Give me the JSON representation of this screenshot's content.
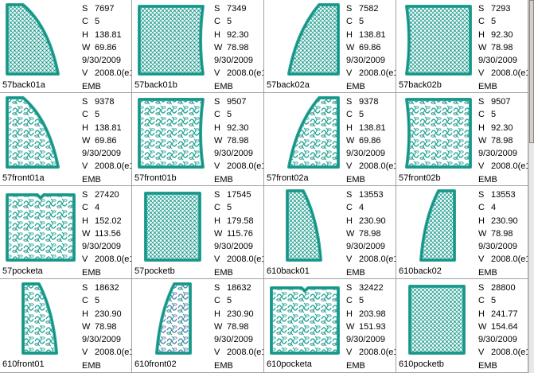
{
  "colors": {
    "stitch": "#2aa89a",
    "stitch_dark": "#0f7f74",
    "thread_accent": "#6a7fb0",
    "border": "#a0a0a0"
  },
  "designs": [
    {
      "name": "57back01a",
      "s": "7697",
      "c": "5",
      "h": "138.81",
      "w": "69.86",
      "date": "9/30/2009",
      "v": "2008.0(e1",
      "fmt": "EMB",
      "shape": "back-a",
      "fill": "grid"
    },
    {
      "name": "57back01b",
      "s": "7349",
      "c": "5",
      "h": "92.30",
      "w": "78.98",
      "date": "9/30/2009",
      "v": "2008.0(e1",
      "fmt": "EMB",
      "shape": "back-b",
      "fill": "grid"
    },
    {
      "name": "57back02a",
      "s": "7582",
      "c": "5",
      "h": "138.81",
      "w": "69.86",
      "date": "9/30/2009",
      "v": "2008.0(e1",
      "fmt": "EMB",
      "shape": "back-a-mirror",
      "fill": "grid"
    },
    {
      "name": "57back02b",
      "s": "7293",
      "c": "5",
      "h": "92.30",
      "w": "78.98",
      "date": "9/30/2009",
      "v": "2008.0(e1",
      "fmt": "EMB",
      "shape": "back-b-mirror",
      "fill": "grid"
    },
    {
      "name": "57front01a",
      "s": "9378",
      "c": "5",
      "h": "138.81",
      "w": "69.86",
      "date": "9/30/2009",
      "v": "2008.0(e1",
      "fmt": "EMB",
      "shape": "back-a",
      "fill": "floral"
    },
    {
      "name": "57front01b",
      "s": "9507",
      "c": "5",
      "h": "92.30",
      "w": "78.98",
      "date": "9/30/2009",
      "v": "2008.0(e1",
      "fmt": "EMB",
      "shape": "back-b",
      "fill": "floral"
    },
    {
      "name": "57front02a",
      "s": "9378",
      "c": "5",
      "h": "138.81",
      "w": "69.86",
      "date": "9/30/2009",
      "v": "2008.0(e1",
      "fmt": "EMB",
      "shape": "back-a-mirror",
      "fill": "floral"
    },
    {
      "name": "57front02b",
      "s": "9507",
      "c": "5",
      "h": "92.30",
      "w": "78.98",
      "date": "9/30/2009",
      "v": "2008.0(e1",
      "fmt": "EMB",
      "shape": "back-b-mirror",
      "fill": "floral"
    },
    {
      "name": "57pocketa",
      "s": "27420",
      "c": "4",
      "h": "152.02",
      "w": "113.56",
      "date": "9/30/2009",
      "v": "2008.0(e1",
      "fmt": "EMB",
      "shape": "pocket-wide",
      "fill": "floral"
    },
    {
      "name": "57pocketb",
      "s": "17545",
      "c": "5",
      "h": "179.58",
      "w": "115.76",
      "date": "9/30/2009",
      "v": "2008.0(e1",
      "fmt": "EMB",
      "shape": "pocket-tall",
      "fill": "grid"
    },
    {
      "name": "610back01",
      "s": "13553",
      "c": "4",
      "h": "230.90",
      "w": "78.98",
      "date": "9/30/2009",
      "v": "2008.0(e1",
      "fmt": "EMB",
      "shape": "narrow",
      "fill": "grid"
    },
    {
      "name": "610back02",
      "s": "13553",
      "c": "4",
      "h": "230.90",
      "w": "78.98",
      "date": "9/30/2009",
      "v": "2008.0(e1",
      "fmt": "EMB",
      "shape": "narrow-mirror",
      "fill": "grid"
    },
    {
      "name": "610front01",
      "s": "18632",
      "c": "5",
      "h": "230.90",
      "w": "78.98",
      "date": "9/30/2009",
      "v": "2008.0(e1",
      "fmt": "EMB",
      "shape": "narrow",
      "fill": "floral"
    },
    {
      "name": "610front02",
      "s": "18632",
      "c": "5",
      "h": "230.90",
      "w": "78.98",
      "date": "9/30/2009",
      "v": "2008.0(e1",
      "fmt": "EMB",
      "shape": "narrow-mirror",
      "fill": "floral-blue"
    },
    {
      "name": "610pocketa",
      "s": "32422",
      "c": "5",
      "h": "203.98",
      "w": "151.93",
      "date": "9/30/2009",
      "v": "2008.0(e1",
      "fmt": "EMB",
      "shape": "pocket-wide",
      "fill": "floral"
    },
    {
      "name": "610pocketb",
      "s": "28800",
      "c": "5",
      "h": "241.77",
      "w": "154.64",
      "date": "9/30/2009",
      "v": "2008.0(e1",
      "fmt": "EMB",
      "shape": "pocket-tall",
      "fill": "grid"
    }
  ],
  "labels": {
    "s": "S",
    "c": "C",
    "h": "H",
    "w": "W",
    "v": "V"
  }
}
